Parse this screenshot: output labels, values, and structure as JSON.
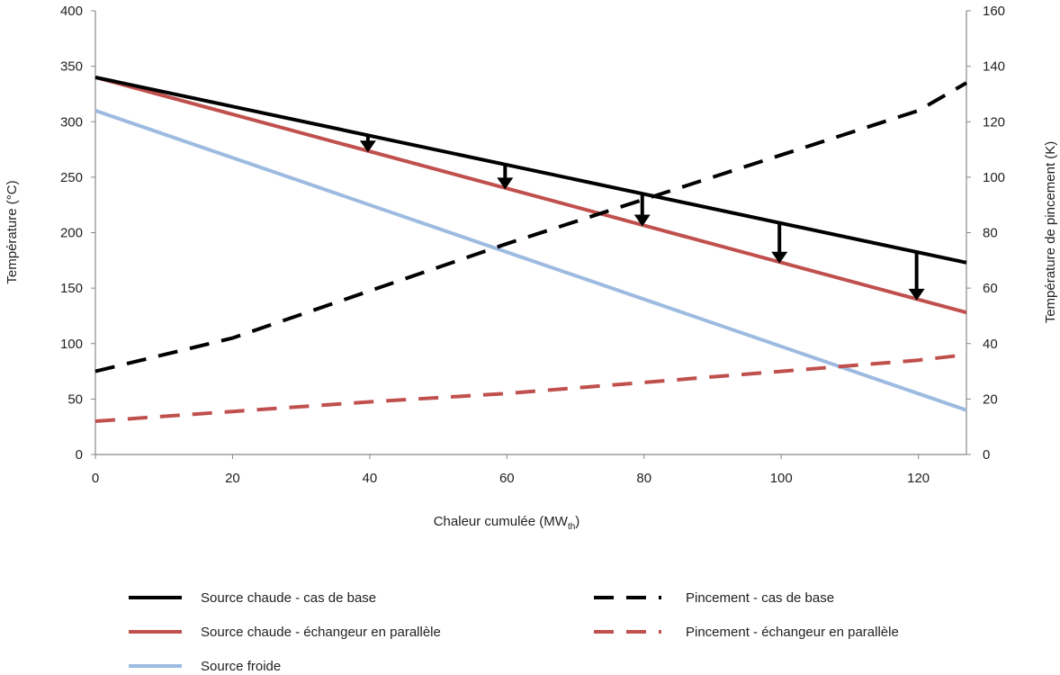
{
  "chart_data": {
    "type": "line",
    "title": "",
    "xlabel": "Chaleur cumulée (MW",
    "xlabel_sub": "th",
    "xlabel_end": ")",
    "ylabel_left": "Température (°C)",
    "ylabel_right": "Température de pincement (K)",
    "xlim": [
      0,
      127
    ],
    "ylim_left": [
      0,
      400
    ],
    "ylim_right": [
      0,
      160
    ],
    "x_ticks": [
      0,
      20,
      40,
      60,
      80,
      100,
      120
    ],
    "y_left_ticks": [
      0,
      50,
      100,
      150,
      200,
      250,
      300,
      350,
      400
    ],
    "y_right_ticks": [
      0,
      20,
      40,
      60,
      80,
      100,
      120,
      140,
      160
    ],
    "grid": false,
    "legend_position": "bottom",
    "series": [
      {
        "name": "Source chaude - cas de base",
        "axis": "left",
        "color": "#000000",
        "dash": "solid",
        "x": [
          0,
          127
        ],
        "y": [
          340,
          173
        ]
      },
      {
        "name": "Source chaude - échangeur en parallèle",
        "axis": "left",
        "color": "#c0504d",
        "dash": "solid",
        "x": [
          0,
          127
        ],
        "y": [
          340,
          128
        ]
      },
      {
        "name": "Source froide",
        "axis": "left",
        "color": "#9dbbe0",
        "dash": "solid",
        "x": [
          0,
          127
        ],
        "y": [
          310,
          40
        ]
      },
      {
        "name": "Pincement - cas de base",
        "axis": "right",
        "color": "#000000",
        "dash": "dashed",
        "x": [
          0,
          20,
          40,
          60,
          80,
          100,
          120,
          127
        ],
        "y": [
          30,
          42,
          59,
          76,
          92,
          108,
          124,
          134
        ]
      },
      {
        "name": "Pincement - échangeur en parallèle",
        "axis": "right",
        "color": "#c0504d",
        "dash": "dashed",
        "x": [
          0,
          20,
          40,
          60,
          80,
          100,
          120,
          127
        ],
        "y": [
          12,
          15.5,
          19,
          22,
          26,
          30,
          34,
          36
        ]
      }
    ],
    "annotations": {
      "arrow_x": [
        40,
        60,
        80,
        100,
        120
      ],
      "description": "arrows"
    }
  }
}
